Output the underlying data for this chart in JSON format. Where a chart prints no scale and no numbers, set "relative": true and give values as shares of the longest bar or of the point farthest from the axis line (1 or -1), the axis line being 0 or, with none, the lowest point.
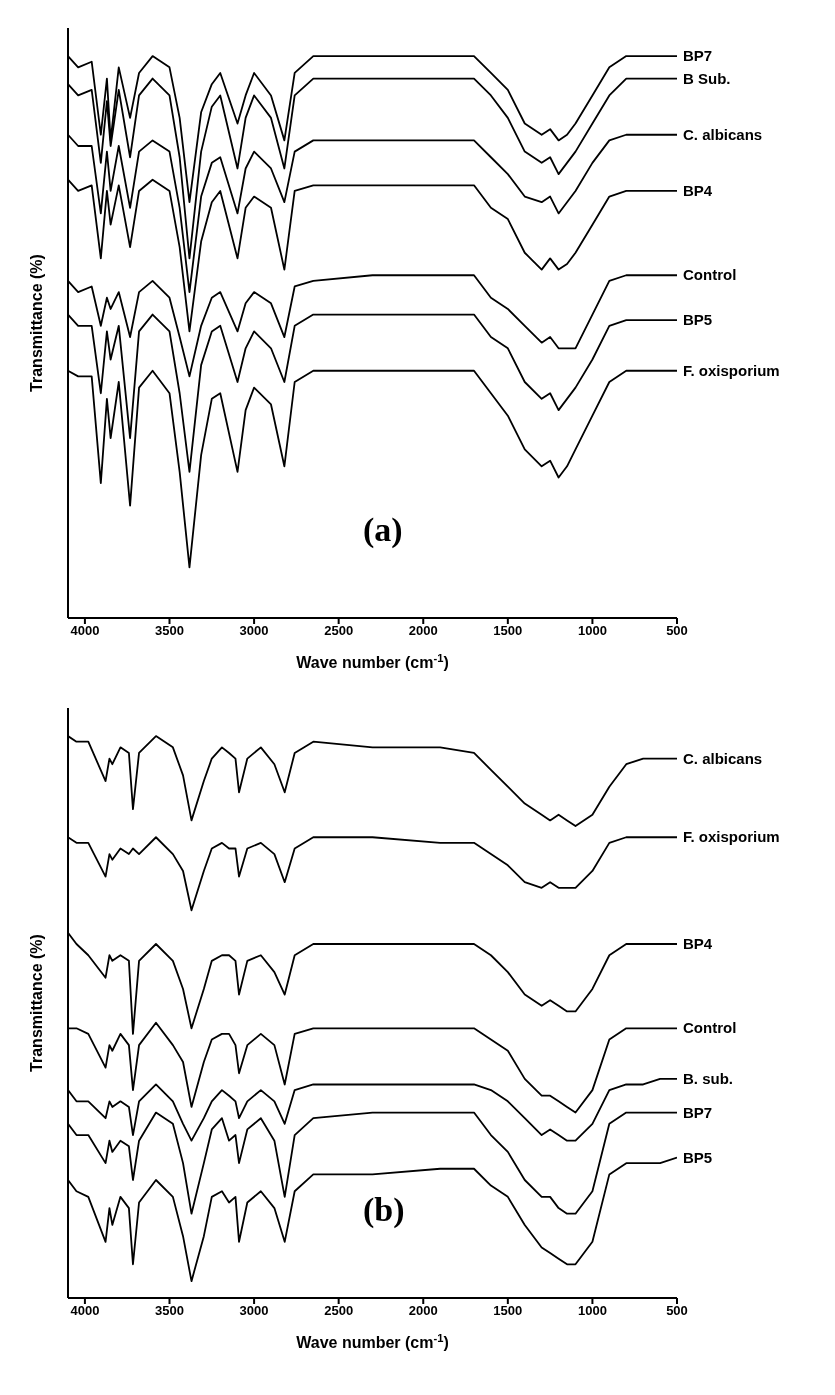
{
  "chart_data": [
    {
      "type": "line",
      "relative": true,
      "xlabel": "Wave number (cm$^{-1}$)",
      "ylabel": "Transmittance (%)",
      "annotations": [
        "(a)"
      ],
      "xlim": [
        4100,
        500
      ],
      "xticks": [
        4000,
        3500,
        3000,
        2500,
        2000,
        1500,
        1000,
        500
      ],
      "marker": "none",
      "x": [
        4100,
        4040,
        3960,
        3906,
        3870,
        3848,
        3800,
        3733,
        3680,
        3600,
        3500,
        3440,
        3382,
        3313,
        3250,
        3200,
        3098,
        3050,
        3000,
        2900,
        2821,
        2760,
        2650,
        2300,
        1900,
        1700,
        1600,
        1500,
        1400,
        1300,
        1250,
        1200,
        1150,
        1100,
        1000,
        900,
        800,
        700,
        600,
        500
      ],
      "series": [
        {
          "name": "BP7",
          "color": "#000000",
          "values": [
            1.0,
            0.98,
            0.99,
            0.86,
            0.96,
            0.85,
            0.98,
            0.89,
            0.97,
            1.0,
            0.98,
            0.89,
            0.74,
            0.9,
            0.95,
            0.97,
            0.88,
            0.93,
            0.97,
            0.93,
            0.85,
            0.97,
            1.0,
            1.0,
            1.0,
            1.0,
            0.97,
            0.94,
            0.88,
            0.86,
            0.87,
            0.85,
            0.86,
            0.88,
            0.93,
            0.98,
            1.0,
            1.0,
            1.0,
            1.0
          ]
        },
        {
          "name": "B Sub.",
          "color": "#000000",
          "values": [
            0.95,
            0.93,
            0.94,
            0.81,
            0.92,
            0.84,
            0.94,
            0.82,
            0.93,
            0.96,
            0.93,
            0.82,
            0.64,
            0.83,
            0.91,
            0.93,
            0.8,
            0.89,
            0.93,
            0.89,
            0.8,
            0.93,
            0.96,
            0.96,
            0.96,
            0.96,
            0.93,
            0.89,
            0.83,
            0.81,
            0.82,
            0.79,
            0.81,
            0.83,
            0.88,
            0.93,
            0.96,
            0.96,
            0.96,
            0.96
          ]
        },
        {
          "name": "C. albicans",
          "color": "#000000",
          "values": [
            0.86,
            0.84,
            0.84,
            0.72,
            0.83,
            0.76,
            0.84,
            0.73,
            0.83,
            0.85,
            0.83,
            0.73,
            0.58,
            0.75,
            0.81,
            0.82,
            0.72,
            0.8,
            0.83,
            0.8,
            0.74,
            0.83,
            0.85,
            0.85,
            0.85,
            0.85,
            0.82,
            0.79,
            0.75,
            0.74,
            0.75,
            0.72,
            0.74,
            0.76,
            0.81,
            0.85,
            0.86,
            0.86,
            0.86,
            0.86
          ]
        },
        {
          "name": "BP4",
          "color": "#000000",
          "values": [
            0.78,
            0.76,
            0.77,
            0.64,
            0.76,
            0.7,
            0.77,
            0.66,
            0.76,
            0.78,
            0.76,
            0.66,
            0.51,
            0.67,
            0.74,
            0.76,
            0.64,
            0.73,
            0.75,
            0.73,
            0.62,
            0.76,
            0.77,
            0.77,
            0.77,
            0.77,
            0.73,
            0.71,
            0.65,
            0.62,
            0.64,
            0.62,
            0.63,
            0.65,
            0.7,
            0.75,
            0.76,
            0.76,
            0.76,
            0.76
          ]
        },
        {
          "name": "Control",
          "color": "#000000",
          "values": [
            0.6,
            0.58,
            0.59,
            0.52,
            0.57,
            0.55,
            0.58,
            0.5,
            0.58,
            0.6,
            0.57,
            0.5,
            0.43,
            0.52,
            0.57,
            0.58,
            0.51,
            0.56,
            0.58,
            0.56,
            0.5,
            0.59,
            0.6,
            0.61,
            0.61,
            0.61,
            0.57,
            0.55,
            0.52,
            0.49,
            0.5,
            0.48,
            0.48,
            0.48,
            0.54,
            0.6,
            0.61,
            0.61,
            0.61,
            0.61
          ]
        },
        {
          "name": "BP5",
          "color": "#000000",
          "values": [
            0.54,
            0.52,
            0.52,
            0.4,
            0.51,
            0.46,
            0.52,
            0.32,
            0.51,
            0.54,
            0.51,
            0.4,
            0.26,
            0.45,
            0.51,
            0.52,
            0.42,
            0.48,
            0.51,
            0.48,
            0.42,
            0.52,
            0.54,
            0.54,
            0.54,
            0.54,
            0.5,
            0.48,
            0.42,
            0.39,
            0.4,
            0.37,
            0.39,
            0.41,
            0.46,
            0.52,
            0.53,
            0.53,
            0.53,
            0.53
          ]
        },
        {
          "name": "F. oxisporium",
          "color": "#000000",
          "values": [
            0.44,
            0.43,
            0.43,
            0.24,
            0.39,
            0.32,
            0.42,
            0.2,
            0.41,
            0.44,
            0.4,
            0.26,
            0.09,
            0.29,
            0.39,
            0.4,
            0.26,
            0.37,
            0.41,
            0.38,
            0.27,
            0.42,
            0.44,
            0.44,
            0.44,
            0.44,
            0.4,
            0.36,
            0.3,
            0.27,
            0.28,
            0.25,
            0.27,
            0.3,
            0.36,
            0.42,
            0.44,
            0.44,
            0.44,
            0.44
          ]
        }
      ]
    },
    {
      "type": "line",
      "relative": true,
      "xlabel": "Wave number (cm$^{-1}$)",
      "ylabel": "Transmittance (%)",
      "annotations": [
        "(b)"
      ],
      "xlim": [
        4100,
        500
      ],
      "xticks": [
        4000,
        3500,
        3000,
        2500,
        2000,
        1500,
        1000,
        500
      ],
      "marker": "none",
      "x": [
        4100,
        4050,
        3980,
        3878,
        3855,
        3838,
        3790,
        3740,
        3716,
        3680,
        3580,
        3480,
        3420,
        3370,
        3297,
        3250,
        3190,
        3148,
        3110,
        3089,
        3040,
        2960,
        2880,
        2819,
        2760,
        2650,
        2300,
        1900,
        1700,
        1600,
        1500,
        1400,
        1300,
        1250,
        1200,
        1150,
        1100,
        1000,
        900,
        800,
        700,
        600,
        500
      ],
      "series": [
        {
          "name": "C. albicans",
          "color": "#000000",
          "values": [
            1.0,
            0.99,
            0.99,
            0.92,
            0.96,
            0.95,
            0.98,
            0.97,
            0.87,
            0.97,
            1.0,
            0.98,
            0.93,
            0.85,
            0.92,
            0.96,
            0.98,
            0.97,
            0.96,
            0.9,
            0.96,
            0.98,
            0.95,
            0.9,
            0.97,
            0.99,
            0.98,
            0.98,
            0.97,
            0.94,
            0.91,
            0.88,
            0.86,
            0.85,
            0.86,
            0.85,
            0.84,
            0.86,
            0.91,
            0.95,
            0.96,
            0.96,
            0.96
          ]
        },
        {
          "name": "F. oxisporium",
          "color": "#000000",
          "values": [
            0.82,
            0.81,
            0.81,
            0.75,
            0.79,
            0.78,
            0.8,
            0.79,
            0.8,
            0.79,
            0.82,
            0.79,
            0.76,
            0.69,
            0.76,
            0.8,
            0.81,
            0.8,
            0.8,
            0.75,
            0.8,
            0.81,
            0.79,
            0.74,
            0.8,
            0.82,
            0.82,
            0.81,
            0.81,
            0.79,
            0.77,
            0.74,
            0.73,
            0.74,
            0.73,
            0.73,
            0.73,
            0.76,
            0.81,
            0.82,
            0.82,
            0.82,
            0.82
          ]
        },
        {
          "name": "BP4",
          "color": "#000000",
          "values": [
            0.65,
            0.63,
            0.61,
            0.57,
            0.61,
            0.6,
            0.61,
            0.6,
            0.47,
            0.6,
            0.63,
            0.6,
            0.55,
            0.48,
            0.55,
            0.6,
            0.61,
            0.61,
            0.6,
            0.54,
            0.6,
            0.61,
            0.58,
            0.54,
            0.61,
            0.63,
            0.63,
            0.63,
            0.63,
            0.61,
            0.58,
            0.54,
            0.52,
            0.53,
            0.52,
            0.51,
            0.51,
            0.55,
            0.61,
            0.63,
            0.63,
            0.63,
            0.63
          ]
        },
        {
          "name": "Control",
          "color": "#000000",
          "values": [
            0.48,
            0.48,
            0.47,
            0.41,
            0.45,
            0.44,
            0.47,
            0.45,
            0.37,
            0.45,
            0.49,
            0.45,
            0.42,
            0.34,
            0.42,
            0.46,
            0.47,
            0.47,
            0.45,
            0.4,
            0.45,
            0.47,
            0.45,
            0.38,
            0.47,
            0.48,
            0.48,
            0.48,
            0.48,
            0.46,
            0.44,
            0.39,
            0.36,
            0.36,
            0.35,
            0.34,
            0.33,
            0.37,
            0.46,
            0.48,
            0.48,
            0.48,
            0.48
          ]
        },
        {
          "name": "B. sub.",
          "color": "#000000",
          "values": [
            0.37,
            0.35,
            0.35,
            0.32,
            0.35,
            0.34,
            0.35,
            0.34,
            0.29,
            0.35,
            0.38,
            0.35,
            0.31,
            0.28,
            0.32,
            0.35,
            0.37,
            0.36,
            0.35,
            0.32,
            0.35,
            0.37,
            0.35,
            0.31,
            0.37,
            0.38,
            0.38,
            0.38,
            0.38,
            0.37,
            0.35,
            0.32,
            0.29,
            0.3,
            0.29,
            0.28,
            0.28,
            0.31,
            0.37,
            0.38,
            0.38,
            0.39,
            0.39
          ]
        },
        {
          "name": "BP7",
          "color": "#000000",
          "values": [
            0.31,
            0.29,
            0.29,
            0.24,
            0.28,
            0.26,
            0.28,
            0.27,
            0.21,
            0.28,
            0.33,
            0.31,
            0.24,
            0.15,
            0.24,
            0.3,
            0.32,
            0.28,
            0.29,
            0.24,
            0.3,
            0.32,
            0.28,
            0.18,
            0.29,
            0.32,
            0.33,
            0.33,
            0.33,
            0.29,
            0.26,
            0.21,
            0.18,
            0.18,
            0.16,
            0.15,
            0.15,
            0.19,
            0.31,
            0.33,
            0.33,
            0.33,
            0.33
          ]
        },
        {
          "name": "BP5",
          "color": "#000000",
          "values": [
            0.21,
            0.19,
            0.18,
            0.1,
            0.16,
            0.13,
            0.18,
            0.16,
            0.06,
            0.17,
            0.21,
            0.18,
            0.11,
            0.03,
            0.11,
            0.18,
            0.19,
            0.17,
            0.18,
            0.1,
            0.17,
            0.19,
            0.16,
            0.1,
            0.19,
            0.22,
            0.22,
            0.23,
            0.23,
            0.2,
            0.18,
            0.13,
            0.09,
            0.08,
            0.07,
            0.06,
            0.06,
            0.1,
            0.22,
            0.24,
            0.24,
            0.24,
            0.25
          ]
        }
      ]
    }
  ]
}
